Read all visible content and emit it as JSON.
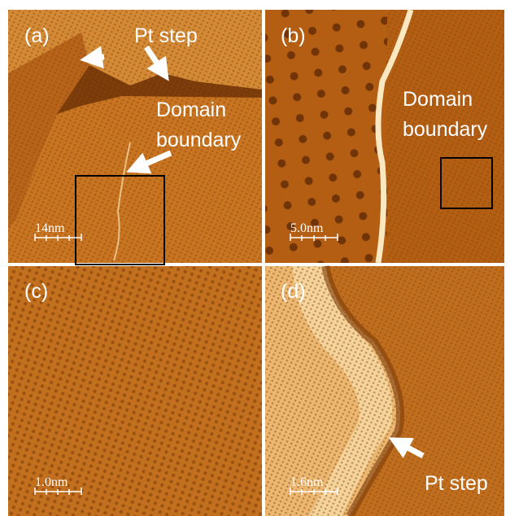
{
  "panels": [
    {
      "label": "(a)",
      "annotations": [
        "Pt step",
        "Domain",
        "boundary"
      ],
      "scale_bar": "14nm"
    },
    {
      "label": "(b)",
      "annotations": [
        "Domain",
        "boundary"
      ],
      "scale_bar": "5.0nm"
    },
    {
      "label": "(c)",
      "scale_bar": "1.0nm"
    },
    {
      "label": "(d)",
      "annotations": [
        "Pt step"
      ],
      "scale_bar": "1.6nm"
    }
  ]
}
